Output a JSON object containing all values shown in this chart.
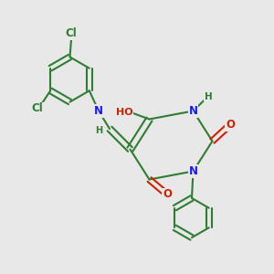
{
  "bg_color": "#e8e8e8",
  "bond_color": "#2e7d32",
  "bond_width": 1.5,
  "atom_colors": {
    "C": "#2e7d32",
    "N": "#1a1aff",
    "O": "#cc2200",
    "Cl": "#2e7d32",
    "H": "#2e7d32"
  },
  "font_size": 8.5,
  "dbo": 0.012
}
